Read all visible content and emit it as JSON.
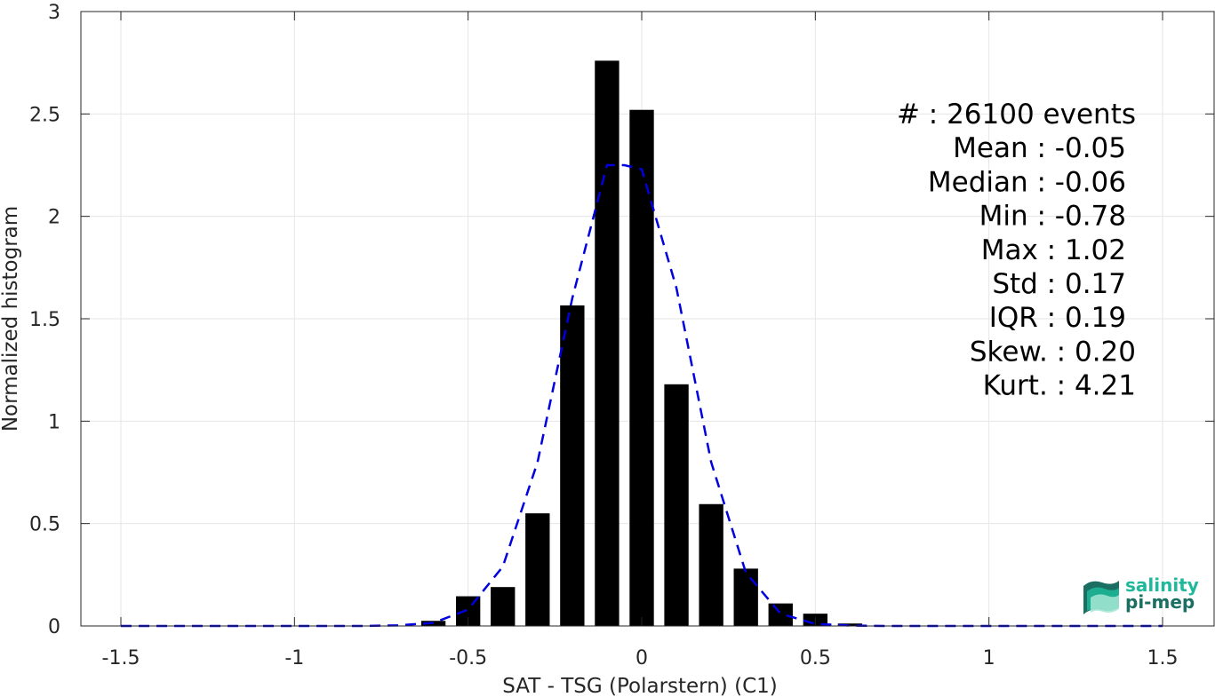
{
  "chart_data": {
    "type": "bar",
    "xlabel": "SAT - TSG (Polarstern) (C1)",
    "ylabel": "Normalized histogram",
    "xlim": [
      -1.5,
      1.5
    ],
    "ylim": [
      0,
      3
    ],
    "grid": true,
    "xticks": [
      -1.5,
      -1,
      -0.5,
      0,
      0.5,
      1,
      1.5
    ],
    "xtick_labels": [
      "-1.5",
      "-1",
      "-0.5",
      "0",
      "0.5",
      "1",
      "1.5"
    ],
    "yticks": [
      0,
      0.5,
      1,
      1.5,
      2,
      2.5,
      3
    ],
    "ytick_labels": [
      "0",
      "0.5",
      "1",
      "1.5",
      "2",
      "2.5",
      "3"
    ],
    "bars": {
      "x": [
        -0.7,
        -0.6,
        -0.5,
        -0.4,
        -0.3,
        -0.2,
        -0.1,
        0.0,
        0.1,
        0.2,
        0.3,
        0.4,
        0.5,
        0.6
      ],
      "values": [
        0.002,
        0.025,
        0.145,
        0.19,
        0.55,
        1.565,
        2.76,
        2.52,
        1.18,
        0.595,
        0.28,
        0.11,
        0.06,
        0.012
      ],
      "width": 0.07,
      "color": "#000000"
    },
    "fit": {
      "style": "dashed",
      "color": "#0000e0",
      "x": [
        -1.5,
        -1.4,
        -1.3,
        -1.2,
        -1.1,
        -1.0,
        -0.9,
        -0.8,
        -0.7,
        -0.6,
        -0.5,
        -0.4,
        -0.3,
        -0.2,
        -0.1,
        -0.05,
        0.0,
        0.1,
        0.2,
        0.3,
        0.4,
        0.5,
        0.6,
        0.7,
        0.8,
        0.9,
        1.0,
        1.1,
        1.2,
        1.3,
        1.4,
        1.5
      ],
      "y": [
        0.0,
        0.0,
        0.0,
        0.0,
        0.0,
        0.0,
        0.0,
        0.0,
        0.003,
        0.015,
        0.08,
        0.29,
        0.8,
        1.6,
        2.25,
        2.25,
        2.23,
        1.65,
        0.8,
        0.26,
        0.06,
        0.01,
        0.002,
        0.0,
        0.0,
        0.0,
        0.0,
        0.0,
        0.0,
        0.0,
        0.0,
        0.0
      ]
    },
    "annotations": [
      {
        "label": "#  : 26100 events"
      },
      {
        "label": "Mean : -0.05"
      },
      {
        "label": "Median : -0.06"
      },
      {
        "label": "Min : -0.78"
      },
      {
        "label": "Max : 1.02"
      },
      {
        "label": "Std : 0.17"
      },
      {
        "label": "IQR : 0.19"
      },
      {
        "label": "Skew. : 0.20"
      },
      {
        "label": "Kurt. : 4.21"
      }
    ]
  },
  "logo": {
    "line1": "salinity",
    "line2": "pi-mep",
    "color_primary": "#1fb89a",
    "color_secondary": "#1a6e62"
  }
}
